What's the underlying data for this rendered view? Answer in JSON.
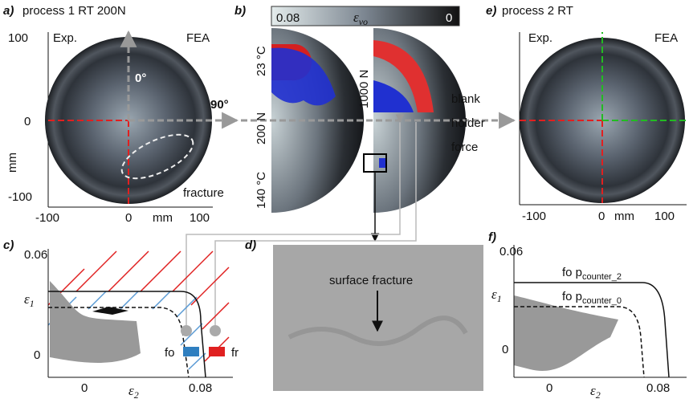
{
  "panel_a": {
    "label": "a)",
    "title": "process 1 RT 200N",
    "exp": "Exp.",
    "fea": "FEA",
    "angle_0": "0°",
    "angle_90": "90°",
    "fracture": "fracture",
    "y_axis_label": "mm",
    "x_axis_label": "mm",
    "yticks": [
      "100",
      "0",
      "-100"
    ],
    "xticks": [
      "-100",
      "0",
      "100"
    ]
  },
  "panel_b": {
    "label": "b)",
    "colorbar": {
      "min": "0.08",
      "symbol": "ε",
      "subscript": "vo",
      "max": "0"
    },
    "temps": [
      "23 °C",
      "140 °C"
    ],
    "forces": [
      "200 N",
      "1000 N"
    ],
    "arrow_label": [
      "blank",
      "holder",
      "force"
    ]
  },
  "panel_e": {
    "label": "e)",
    "title": "process 2 RT",
    "exp": "Exp.",
    "fea": "FEA",
    "x_axis_label": "mm",
    "xticks": [
      "-100",
      "0",
      "100"
    ]
  },
  "panel_c": {
    "label": "c)",
    "yticks": [
      "0.06",
      "0"
    ],
    "y_symbol": "ε",
    "y_sub": "1",
    "xticks": [
      "0",
      "0.08"
    ],
    "x_symbol": "ε",
    "x_sub": "2",
    "legend": [
      "fo",
      "fr"
    ]
  },
  "panel_d": {
    "label": "d)",
    "annotation": "surface fracture"
  },
  "panel_f": {
    "label": "f)",
    "yticks": [
      "0.06",
      "0"
    ],
    "y_symbol": "ε",
    "y_sub": "1",
    "xticks": [
      "0",
      "0.08"
    ],
    "x_symbol": "ε",
    "x_sub": "2",
    "curve_labels": [
      {
        "prefix": "fo p",
        "sub": "counter_2"
      },
      {
        "prefix": "fo p",
        "sub": "counter_0"
      }
    ]
  }
}
